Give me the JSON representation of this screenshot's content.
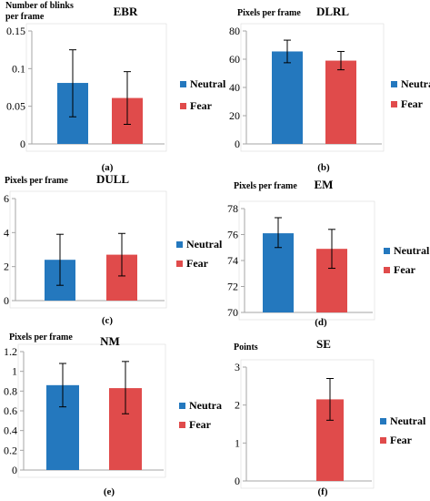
{
  "colors": {
    "neutral": "#2478BE",
    "fear": "#E04B4B",
    "axis": "#A6A6A6",
    "error": "#000000"
  },
  "chart_data": [
    {
      "type": "bar",
      "panel_label": "(a)",
      "title": "EBR",
      "ylabel": "Number of blinks per frame",
      "ylabel_lines": [
        "Number of blinks",
        "per frame"
      ],
      "ylim": [
        0,
        0.15
      ],
      "yticks": [
        0,
        0.05,
        0.1,
        0.15
      ],
      "ytick_labels": [
        "0",
        "0.05",
        "0.1",
        "0.15"
      ],
      "legend": [
        "Neutral",
        "Fear"
      ],
      "series": [
        {
          "name": "Neutral",
          "value": 0.081,
          "error": [
            0.036,
            0.125
          ]
        },
        {
          "name": "Fear",
          "value": 0.061,
          "error": [
            0.026,
            0.096
          ]
        }
      ]
    },
    {
      "type": "bar",
      "panel_label": "(b)",
      "title": "DLRL",
      "ylabel": "Pixels per frame",
      "ylabel_lines": [
        "Pixels per frame"
      ],
      "ylim": [
        0,
        80
      ],
      "yticks": [
        0,
        20,
        40,
        60,
        80
      ],
      "ytick_labels": [
        "0",
        "20",
        "40",
        "60",
        "80"
      ],
      "legend": [
        "Neutra",
        "Fear"
      ],
      "series": [
        {
          "name": "Neutra",
          "value": 65.5,
          "error": [
            57.5,
            73.5
          ]
        },
        {
          "name": "Fear",
          "value": 59.0,
          "error": [
            52.5,
            65.5
          ]
        }
      ]
    },
    {
      "type": "bar",
      "panel_label": "(c)",
      "title": "DULL",
      "ylabel": "Pixels per frame",
      "ylabel_lines": [
        "Pixels per frame"
      ],
      "ylim": [
        0,
        6
      ],
      "yticks": [
        0,
        2,
        4,
        6
      ],
      "ytick_labels": [
        "0",
        "2",
        "4",
        "6"
      ],
      "legend": [
        "Neutral",
        "Fear"
      ],
      "series": [
        {
          "name": "Neutral",
          "value": 2.4,
          "error": [
            0.9,
            3.9
          ]
        },
        {
          "name": "Fear",
          "value": 2.7,
          "error": [
            1.45,
            3.95
          ]
        }
      ]
    },
    {
      "type": "bar",
      "panel_label": "(d)",
      "title": "EM",
      "ylabel": "Pixels per frame",
      "ylabel_lines": [
        "Pixels per frame"
      ],
      "ylim": [
        70,
        78
      ],
      "yticks": [
        70,
        72,
        74,
        76,
        78
      ],
      "ytick_labels": [
        "70",
        "72",
        "74",
        "76",
        "78"
      ],
      "legend": [
        "Neutral",
        "Fear"
      ],
      "series": [
        {
          "name": "Neutral",
          "value": 76.1,
          "error": [
            75.0,
            77.3
          ]
        },
        {
          "name": "Fear",
          "value": 74.9,
          "error": [
            73.4,
            76.4
          ]
        }
      ]
    },
    {
      "type": "bar",
      "panel_label": "(e)",
      "title": "NM",
      "ylabel": "Pixels per frame",
      "ylabel_lines": [
        "Pixels per frame"
      ],
      "ylim": [
        0,
        1.2
      ],
      "yticks": [
        0,
        0.2,
        0.4,
        0.6,
        0.8,
        1,
        1.2
      ],
      "ytick_labels": [
        "0",
        "0.2",
        "0.4",
        "0.6",
        "0.8",
        "1",
        "1.2"
      ],
      "legend": [
        "Neutra",
        "Fear"
      ],
      "series": [
        {
          "name": "Neutra",
          "value": 0.86,
          "error": [
            0.64,
            1.08
          ]
        },
        {
          "name": "Fear",
          "value": 0.83,
          "error": [
            0.57,
            1.1
          ]
        }
      ]
    },
    {
      "type": "bar",
      "panel_label": "(f)",
      "title": "SE",
      "ylabel": "Points",
      "ylabel_lines": [
        "Points"
      ],
      "ylim": [
        0,
        3
      ],
      "yticks": [
        0,
        1,
        2,
        3
      ],
      "ytick_labels": [
        "0",
        "1",
        "2",
        "3"
      ],
      "legend": [
        "Neutral",
        "Fear"
      ],
      "series": [
        {
          "name": "Neutral",
          "value": 0,
          "error": null
        },
        {
          "name": "Fear",
          "value": 2.15,
          "error": [
            1.6,
            2.7
          ]
        }
      ]
    }
  ]
}
